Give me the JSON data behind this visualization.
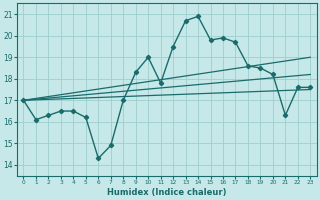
{
  "xlabel": "Humidex (Indice chaleur)",
  "xlim": [
    -0.5,
    23.5
  ],
  "ylim": [
    13.5,
    21.5
  ],
  "xticks": [
    0,
    1,
    2,
    3,
    4,
    5,
    6,
    7,
    8,
    9,
    10,
    11,
    12,
    13,
    14,
    15,
    16,
    17,
    18,
    19,
    20,
    21,
    22,
    23
  ],
  "yticks": [
    14,
    15,
    16,
    17,
    18,
    19,
    20,
    21
  ],
  "bg_color": "#c6e8e8",
  "grid_color": "#9ecece",
  "line_color": "#1a6b6b",
  "main_x": [
    0,
    1,
    2,
    3,
    4,
    5,
    6,
    7,
    8,
    9,
    10,
    11,
    12,
    13,
    14,
    15,
    16,
    17,
    18,
    19,
    20,
    21,
    22,
    23
  ],
  "main_y": [
    17.0,
    16.1,
    16.3,
    16.5,
    16.5,
    16.2,
    14.3,
    14.9,
    17.0,
    18.3,
    19.0,
    17.8,
    19.5,
    20.7,
    20.9,
    19.8,
    19.9,
    19.7,
    18.6,
    18.5,
    18.2,
    16.3,
    17.6,
    17.6
  ],
  "trend1_x": [
    0,
    23
  ],
  "trend1_y": [
    17.0,
    19.0
  ],
  "trend2_x": [
    0,
    23
  ],
  "trend2_y": [
    17.0,
    18.2
  ],
  "trend3_x": [
    0,
    23
  ],
  "trend3_y": [
    17.0,
    17.5
  ]
}
